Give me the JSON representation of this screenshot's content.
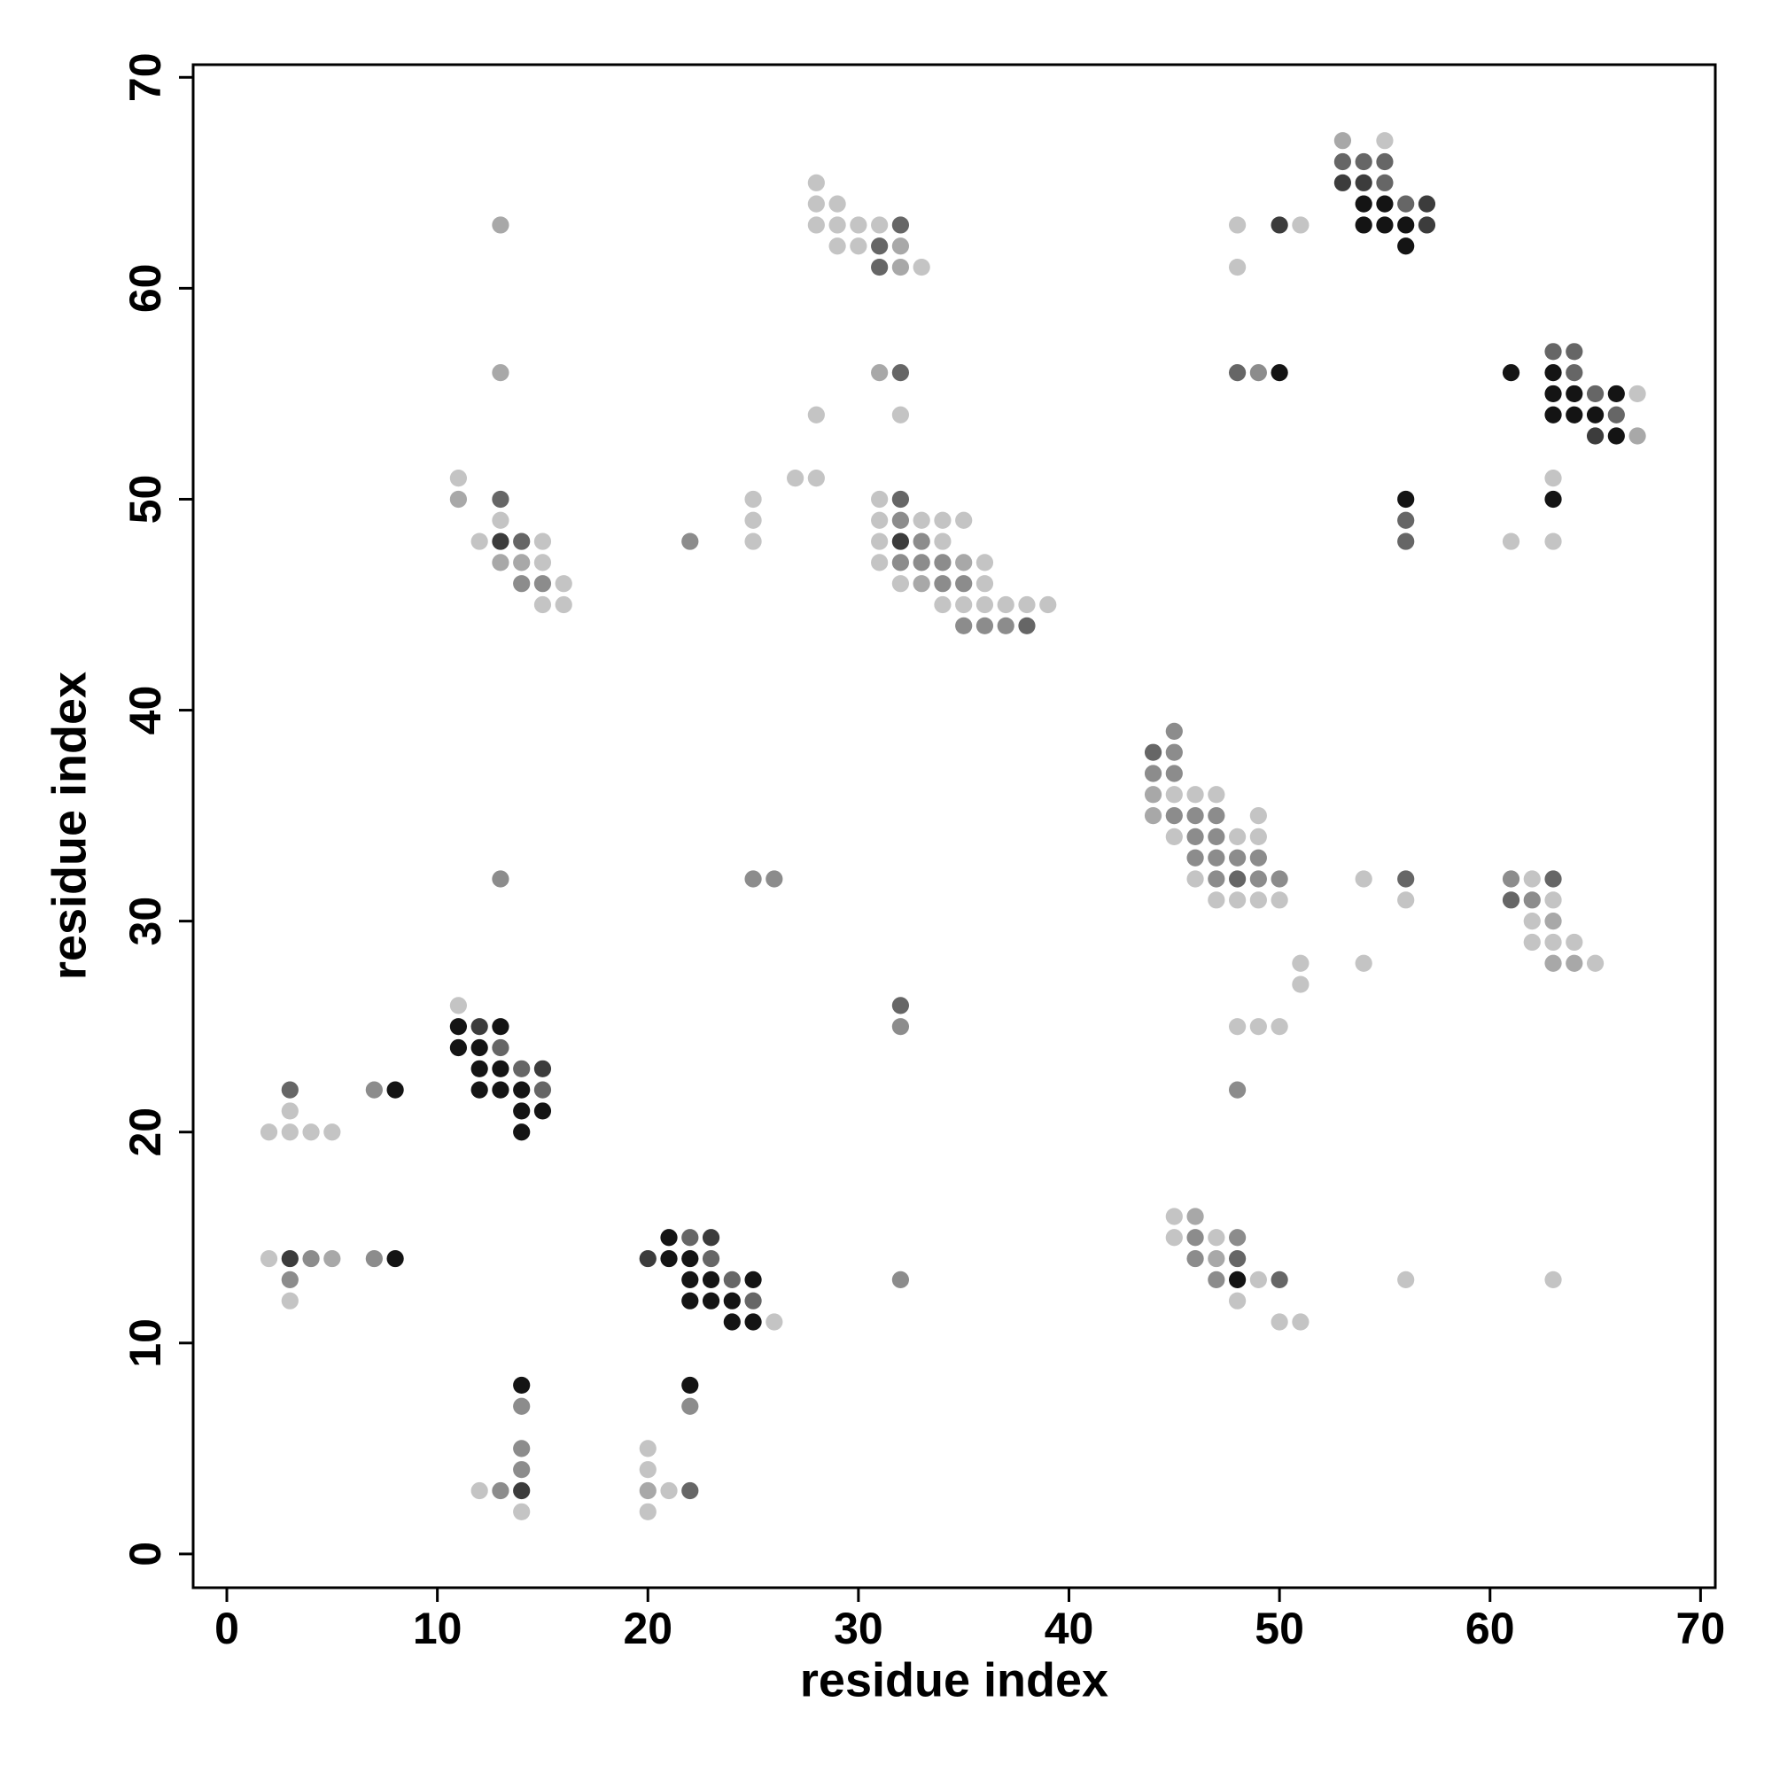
{
  "chart_data": {
    "type": "scatter",
    "x_label": "residue index",
    "y_label": "residue index",
    "xlim": [
      -1.6,
      70.7
    ],
    "ylim": [
      -1.6,
      70.6
    ],
    "xticks": [
      0,
      10,
      20,
      30,
      40,
      50,
      60,
      70
    ],
    "yticks": [
      0,
      10,
      20,
      30,
      40,
      50,
      60,
      70
    ],
    "series": [
      {
        "color": "#c4c4c4",
        "x": [
          55,
          28,
          28,
          29,
          28,
          29,
          30,
          31,
          48,
          51,
          29,
          30,
          33,
          48,
          67,
          28,
          32,
          11,
          27,
          28,
          63,
          25,
          31,
          13,
          25,
          31,
          33,
          34,
          35,
          12,
          15,
          25,
          31,
          34,
          61,
          63,
          15,
          31,
          36,
          16,
          32,
          36,
          15,
          16,
          34,
          35,
          36,
          37,
          38,
          39,
          45,
          46,
          47,
          49,
          45,
          48,
          49,
          46,
          54,
          62,
          47,
          48,
          49,
          50,
          56,
          63,
          62,
          62,
          63,
          64,
          51,
          54,
          65,
          51,
          11,
          48,
          49,
          50,
          3,
          2,
          3,
          4,
          5,
          45,
          45,
          47,
          2,
          49,
          56,
          63,
          3,
          48,
          26,
          50,
          51,
          20,
          20,
          12,
          21,
          14,
          20
        ],
        "y": [
          67,
          65,
          64,
          64,
          63,
          63,
          63,
          63,
          63,
          63,
          62,
          62,
          61,
          61,
          55,
          54,
          54,
          51,
          51,
          51,
          51,
          50,
          50,
          49,
          49,
          49,
          49,
          49,
          49,
          48,
          48,
          48,
          48,
          48,
          48,
          48,
          47,
          47,
          47,
          46,
          46,
          46,
          45,
          45,
          45,
          45,
          45,
          45,
          45,
          45,
          36,
          36,
          36,
          35,
          34,
          34,
          34,
          32,
          32,
          32,
          31,
          31,
          31,
          31,
          31,
          31,
          30,
          29,
          29,
          29,
          28,
          28,
          28,
          27,
          26,
          25,
          25,
          25,
          21,
          20,
          20,
          20,
          20,
          16,
          15,
          15,
          14,
          13,
          13,
          13,
          12,
          12,
          11,
          11,
          11,
          5,
          4,
          3,
          3,
          2,
          2
        ]
      },
      {
        "color": "#a8a8a8",
        "x": [
          53,
          13,
          32,
          32,
          13,
          31,
          67,
          11,
          13,
          14,
          35,
          33,
          44,
          44,
          63,
          63,
          64,
          46,
          5,
          47,
          20
        ],
        "y": [
          67,
          63,
          62,
          61,
          56,
          56,
          53,
          50,
          47,
          47,
          47,
          46,
          36,
          35,
          30,
          28,
          28,
          16,
          14,
          14,
          3
        ]
      },
      {
        "color": "#8c8c8c",
        "x": [
          49,
          32,
          22,
          33,
          32,
          33,
          34,
          14,
          15,
          34,
          35,
          35,
          36,
          37,
          45,
          45,
          44,
          45,
          45,
          46,
          47,
          46,
          47,
          46,
          47,
          48,
          49,
          13,
          25,
          26,
          47,
          49,
          50,
          61,
          62,
          32,
          7,
          48,
          46,
          48,
          4,
          7,
          46,
          3,
          32,
          47,
          14,
          22,
          14,
          14,
          13
        ],
        "y": [
          56,
          49,
          48,
          48,
          47,
          47,
          47,
          46,
          46,
          46,
          46,
          44,
          44,
          44,
          39,
          38,
          37,
          37,
          35,
          35,
          35,
          34,
          34,
          33,
          33,
          33,
          33,
          32,
          32,
          32,
          32,
          32,
          32,
          32,
          31,
          25,
          22,
          22,
          15,
          15,
          14,
          14,
          14,
          13,
          13,
          13,
          7,
          7,
          5,
          4,
          3
        ]
      },
      {
        "color": "#666666",
        "x": [
          53,
          54,
          55,
          55,
          56,
          32,
          31,
          31,
          32,
          48,
          64,
          63,
          64,
          65,
          66,
          13,
          32,
          56,
          14,
          56,
          38,
          44,
          48,
          56,
          63,
          61,
          32,
          13,
          14,
          3,
          15,
          22,
          23,
          48,
          24,
          50,
          25,
          22
        ],
        "y": [
          66,
          66,
          66,
          65,
          64,
          63,
          62,
          61,
          56,
          56,
          56,
          57,
          57,
          55,
          54,
          50,
          50,
          49,
          48,
          48,
          44,
          38,
          32,
          32,
          32,
          31,
          26,
          24,
          23,
          22,
          22,
          15,
          14,
          14,
          13,
          13,
          12,
          3
        ]
      },
      {
        "color": "#3c3c3c",
        "x": [
          53,
          54,
          57,
          50,
          57,
          13,
          32,
          12,
          15,
          23,
          3,
          20,
          65,
          14
        ],
        "y": [
          65,
          65,
          64,
          63,
          63,
          48,
          48,
          25,
          23,
          15,
          14,
          14,
          53,
          3
        ]
      },
      {
        "color": "#141414",
        "x": [
          54,
          55,
          54,
          55,
          56,
          56,
          50,
          61,
          63,
          63,
          64,
          66,
          63,
          64,
          65,
          66,
          56,
          63,
          11,
          13,
          11,
          12,
          12,
          13,
          8,
          12,
          13,
          14,
          14,
          15,
          14,
          21,
          8,
          21,
          22,
          22,
          23,
          25,
          48,
          22,
          23,
          24,
          24,
          25,
          14,
          22
        ],
        "y": [
          64,
          64,
          63,
          63,
          63,
          62,
          56,
          56,
          56,
          55,
          55,
          55,
          54,
          54,
          54,
          53,
          50,
          50,
          25,
          25,
          24,
          24,
          23,
          23,
          22,
          22,
          22,
          22,
          21,
          21,
          20,
          15,
          14,
          14,
          14,
          13,
          13,
          13,
          13,
          12,
          12,
          12,
          11,
          11,
          8,
          8
        ]
      }
    ]
  }
}
